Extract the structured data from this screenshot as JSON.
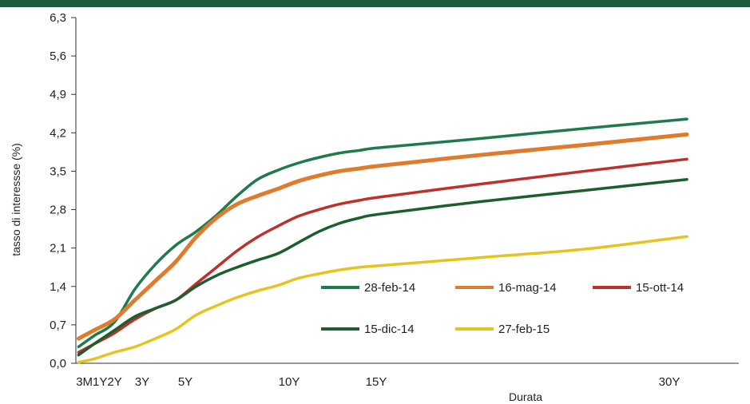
{
  "chart_data": {
    "type": "line",
    "xlabel": "Durata",
    "ylabel": "tasso di interessse (%)",
    "ylim": [
      0,
      6.3
    ],
    "yticks": [
      "0,0",
      "0,7",
      "1,4",
      "2,1",
      "2,8",
      "3,5",
      "4,2",
      "4,9",
      "5,6",
      "6,3"
    ],
    "xlim": [
      0,
      32
    ],
    "xticks": [
      {
        "label": "3M1Y2Y",
        "value": 1
      },
      {
        "label": "3Y",
        "value": 3
      },
      {
        "label": "5Y",
        "value": 5
      },
      {
        "label": "10Y",
        "value": 10
      },
      {
        "label": "15Y",
        "value": 15
      },
      {
        "label": "30Y",
        "value": 30
      }
    ],
    "grid": false,
    "legend_position": "lower-right",
    "series": [
      {
        "name": "28-feb-14",
        "color": "#1f7a4c",
        "points": [
          [
            0.25,
            0.3
          ],
          [
            1,
            0.5
          ],
          [
            2,
            0.75
          ],
          [
            3,
            1.35
          ],
          [
            4,
            1.8
          ],
          [
            5,
            2.15
          ],
          [
            6,
            2.4
          ],
          [
            7,
            2.7
          ],
          [
            8,
            3.05
          ],
          [
            9,
            3.35
          ],
          [
            10,
            3.52
          ],
          [
            11,
            3.65
          ],
          [
            12,
            3.75
          ],
          [
            13,
            3.83
          ],
          [
            14,
            3.88
          ],
          [
            15,
            3.93
          ],
          [
            20,
            4.1
          ],
          [
            25,
            4.28
          ],
          [
            30,
            4.45
          ]
        ]
      },
      {
        "name": "16-mag-14",
        "color": "#e07a2c",
        "points": [
          [
            0.25,
            0.45
          ],
          [
            1,
            0.6
          ],
          [
            2,
            0.8
          ],
          [
            3,
            1.15
          ],
          [
            4,
            1.5
          ],
          [
            5,
            1.85
          ],
          [
            6,
            2.3
          ],
          [
            7,
            2.65
          ],
          [
            8,
            2.9
          ],
          [
            9,
            3.05
          ],
          [
            10,
            3.18
          ],
          [
            11,
            3.32
          ],
          [
            12,
            3.42
          ],
          [
            13,
            3.5
          ],
          [
            14,
            3.55
          ],
          [
            15,
            3.6
          ],
          [
            20,
            3.8
          ],
          [
            25,
            3.98
          ],
          [
            30,
            4.17
          ]
        ]
      },
      {
        "name": "15-ott-14",
        "color": "#c0302a",
        "points": [
          [
            0.25,
            0.2
          ],
          [
            1,
            0.35
          ],
          [
            2,
            0.55
          ],
          [
            3,
            0.8
          ],
          [
            4,
            1.0
          ],
          [
            5,
            1.15
          ],
          [
            6,
            1.45
          ],
          [
            7,
            1.75
          ],
          [
            8,
            2.05
          ],
          [
            9,
            2.3
          ],
          [
            10,
            2.5
          ],
          [
            11,
            2.68
          ],
          [
            12,
            2.8
          ],
          [
            13,
            2.9
          ],
          [
            14,
            2.97
          ],
          [
            15,
            3.03
          ],
          [
            20,
            3.27
          ],
          [
            25,
            3.5
          ],
          [
            30,
            3.72
          ]
        ]
      },
      {
        "name": "15-dic-14",
        "color": "#1d5e2e",
        "points": [
          [
            0.25,
            0.15
          ],
          [
            1,
            0.35
          ],
          [
            2,
            0.6
          ],
          [
            3,
            0.85
          ],
          [
            4,
            1.0
          ],
          [
            5,
            1.15
          ],
          [
            6,
            1.4
          ],
          [
            7,
            1.6
          ],
          [
            8,
            1.75
          ],
          [
            9,
            1.88
          ],
          [
            10,
            2.0
          ],
          [
            11,
            2.2
          ],
          [
            12,
            2.4
          ],
          [
            13,
            2.55
          ],
          [
            14,
            2.65
          ],
          [
            15,
            2.72
          ],
          [
            20,
            2.95
          ],
          [
            25,
            3.15
          ],
          [
            30,
            3.35
          ]
        ]
      },
      {
        "name": "27-feb-15",
        "color": "#e6c41f",
        "points": [
          [
            0.25,
            0.02
          ],
          [
            1,
            0.08
          ],
          [
            2,
            0.2
          ],
          [
            3,
            0.3
          ],
          [
            4,
            0.45
          ],
          [
            5,
            0.62
          ],
          [
            6,
            0.88
          ],
          [
            7,
            1.05
          ],
          [
            8,
            1.2
          ],
          [
            9,
            1.32
          ],
          [
            10,
            1.42
          ],
          [
            11,
            1.55
          ],
          [
            12,
            1.63
          ],
          [
            13,
            1.7
          ],
          [
            14,
            1.75
          ],
          [
            15,
            1.78
          ],
          [
            20,
            1.93
          ],
          [
            25,
            2.08
          ],
          [
            30,
            2.31
          ]
        ]
      }
    ],
    "legend": [
      {
        "name": "28-feb-14",
        "color": "#1f7a4c",
        "row": 0,
        "col": 0
      },
      {
        "name": "16-mag-14",
        "color": "#e07a2c",
        "row": 0,
        "col": 1
      },
      {
        "name": "15-ott-14",
        "color": "#c0302a",
        "row": 0,
        "col": 2
      },
      {
        "name": "15-dic-14",
        "color": "#1d5e2e",
        "row": 1,
        "col": 0
      },
      {
        "name": "27-feb-15",
        "color": "#e6c41f",
        "row": 1,
        "col": 1
      }
    ]
  }
}
